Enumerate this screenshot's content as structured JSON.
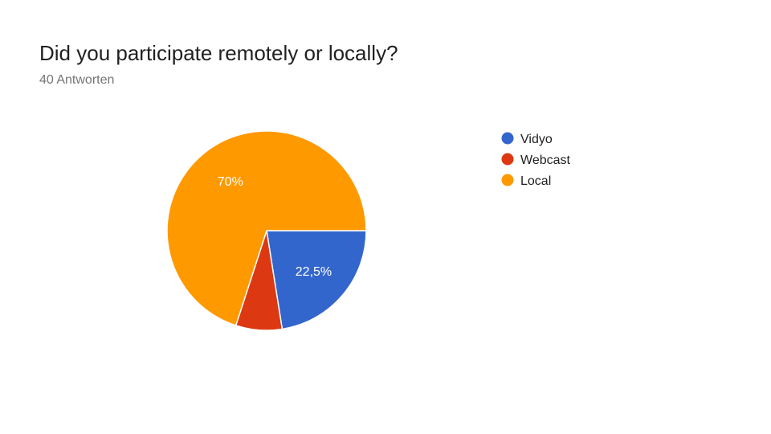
{
  "title": "Did you participate remotely or locally?",
  "subtitle": "40 Antworten",
  "chart_data": {
    "type": "pie",
    "categories": [
      "Vidyo",
      "Webcast",
      "Local"
    ],
    "values": [
      22.5,
      7.5,
      70
    ],
    "data_labels": [
      "22,5%",
      "",
      "70%"
    ],
    "colors": [
      "#3366cc",
      "#dc3912",
      "#ff9900"
    ],
    "legend": [
      "Vidyo",
      "Webcast",
      "Local"
    ],
    "legend_position": "right"
  }
}
